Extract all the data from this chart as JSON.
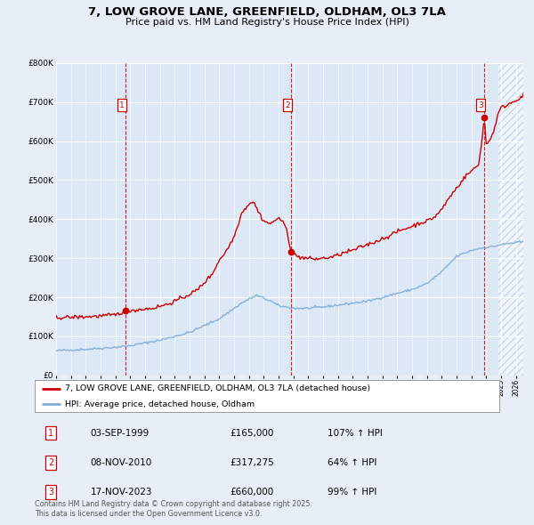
{
  "title": "7, LOW GROVE LANE, GREENFIELD, OLDHAM, OL3 7LA",
  "subtitle": "Price paid vs. HM Land Registry's House Price Index (HPI)",
  "bg_color": "#e8eef7",
  "plot_bg_color": "#dce8f5",
  "grid_color": "#ffffff",
  "hpi_color": "#7eaad4",
  "price_color": "#cc0000",
  "ylim": [
    0,
    800000
  ],
  "yticks": [
    0,
    100000,
    200000,
    300000,
    400000,
    500000,
    600000,
    700000,
    800000
  ],
  "xmin": 1995.0,
  "xmax": 2026.5,
  "transactions": [
    {
      "year": 1999.67,
      "price": 165000,
      "label": "1"
    },
    {
      "year": 2010.85,
      "price": 317275,
      "label": "2"
    },
    {
      "year": 2023.88,
      "price": 660000,
      "label": "3"
    }
  ],
  "sale_labels": [
    {
      "num": "1",
      "date": "03-SEP-1999",
      "price": "£165,000",
      "hpi": "107% ↑ HPI"
    },
    {
      "num": "2",
      "date": "08-NOV-2010",
      "price": "£317,275",
      "hpi": "64% ↑ HPI"
    },
    {
      "num": "3",
      "date": "17-NOV-2023",
      "price": "£660,000",
      "hpi": "99% ↑ HPI"
    }
  ],
  "legend_line1": "7, LOW GROVE LANE, GREENFIELD, OLDHAM, OL3 7LA (detached house)",
  "legend_line2": "HPI: Average price, detached house, Oldham",
  "footer": "Contains HM Land Registry data © Crown copyright and database right 2025.\nThis data is licensed under the Open Government Licence v3.0.",
  "hatch_after_year": 2024.83
}
